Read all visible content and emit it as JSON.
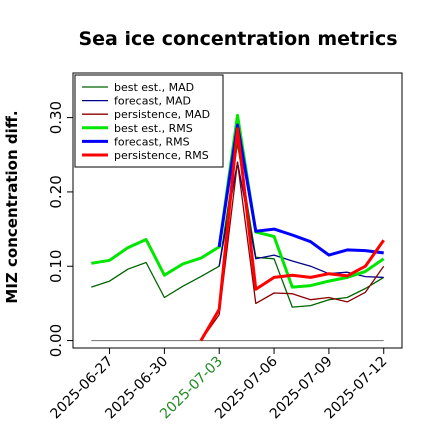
{
  "chart_data": {
    "type": "line",
    "title": "Sea ice concentration metrics",
    "xlabel": "",
    "ylabel": "MIZ concentration diff.",
    "ylim": [
      -0.01,
      0.36
    ],
    "yticks": [
      0.0,
      0.1,
      0.2,
      0.3
    ],
    "ytick_labels": [
      "0.00",
      "0.10",
      "0.20",
      "0.30"
    ],
    "x_range": [
      "2025-06-25",
      "2025-07-13"
    ],
    "xticks": [
      "2025-06-27",
      "2025-06-30",
      "2025-07-03",
      "2025-07-06",
      "2025-07-09",
      "2025-07-12"
    ],
    "xtick_colors": [
      "#000000",
      "#000000",
      "#228B22",
      "#000000",
      "#000000",
      "#000000"
    ],
    "grid": false,
    "legend_position": "top-left",
    "zero_line_color": "#808080",
    "series": [
      {
        "name": "best est., MAD",
        "color": "#006400",
        "width": 1.3,
        "x": [
          "2025-06-26",
          "2025-06-27",
          "2025-06-28",
          "2025-06-29",
          "2025-06-30",
          "2025-07-01",
          "2025-07-02",
          "2025-07-03",
          "2025-07-04",
          "2025-07-05",
          "2025-07-06",
          "2025-07-07",
          "2025-07-08",
          "2025-07-09",
          "2025-07-10",
          "2025-07-11",
          "2025-07-12"
        ],
        "values": [
          0.072,
          0.08,
          0.096,
          0.105,
          0.058,
          0.073,
          0.086,
          0.1,
          0.265,
          0.112,
          0.11,
          0.045,
          0.047,
          0.055,
          0.058,
          0.07,
          0.085
        ]
      },
      {
        "name": "forecast,  MAD",
        "color": "#00008B",
        "width": 1.3,
        "x": [
          "2025-07-03",
          "2025-07-04",
          "2025-07-05",
          "2025-07-06",
          "2025-07-07",
          "2025-07-08",
          "2025-07-09",
          "2025-07-10",
          "2025-07-11",
          "2025-07-12"
        ],
        "values": [
          0.1,
          0.24,
          0.11,
          0.115,
          0.107,
          0.1,
          0.09,
          0.092,
          0.086,
          0.085
        ]
      },
      {
        "name": "persistence, MAD",
        "color": "#8B0000",
        "width": 1.3,
        "x": [
          "2025-07-02",
          "2025-07-03",
          "2025-07-04",
          "2025-07-05",
          "2025-07-06",
          "2025-07-07",
          "2025-07-08",
          "2025-07-09",
          "2025-07-10",
          "2025-07-11",
          "2025-07-12"
        ],
        "values": [
          0.0,
          0.035,
          0.24,
          0.05,
          0.064,
          0.063,
          0.055,
          0.058,
          0.052,
          0.065,
          0.1
        ]
      },
      {
        "name": "best est., RMS",
        "color": "#00E600",
        "width": 3,
        "x": [
          "2025-06-26",
          "2025-06-27",
          "2025-06-28",
          "2025-06-29",
          "2025-06-30",
          "2025-07-01",
          "2025-07-02",
          "2025-07-03",
          "2025-07-04",
          "2025-07-05",
          "2025-07-06",
          "2025-07-07",
          "2025-07-08",
          "2025-07-09",
          "2025-07-10",
          "2025-07-11",
          "2025-07-12"
        ],
        "values": [
          0.104,
          0.108,
          0.125,
          0.136,
          0.088,
          0.103,
          0.111,
          0.126,
          0.303,
          0.146,
          0.14,
          0.072,
          0.074,
          0.08,
          0.085,
          0.093,
          0.11
        ]
      },
      {
        "name": "forecast,  RMS",
        "color": "#0000FF",
        "width": 3,
        "x": [
          "2025-07-03",
          "2025-07-04",
          "2025-07-05",
          "2025-07-06",
          "2025-07-07",
          "2025-07-08",
          "2025-07-09",
          "2025-07-10",
          "2025-07-11",
          "2025-07-12"
        ],
        "values": [
          0.126,
          0.29,
          0.147,
          0.15,
          0.142,
          0.133,
          0.115,
          0.122,
          0.121,
          0.118
        ]
      },
      {
        "name": "persistence, RMS",
        "color": "#FF0000",
        "width": 3,
        "x": [
          "2025-07-02",
          "2025-07-03",
          "2025-07-04",
          "2025-07-05",
          "2025-07-06",
          "2025-07-07",
          "2025-07-08",
          "2025-07-09",
          "2025-07-10",
          "2025-07-11",
          "2025-07-12"
        ],
        "values": [
          0.0,
          0.042,
          0.285,
          0.069,
          0.085,
          0.088,
          0.085,
          0.09,
          0.087,
          0.1,
          0.135
        ]
      }
    ]
  }
}
